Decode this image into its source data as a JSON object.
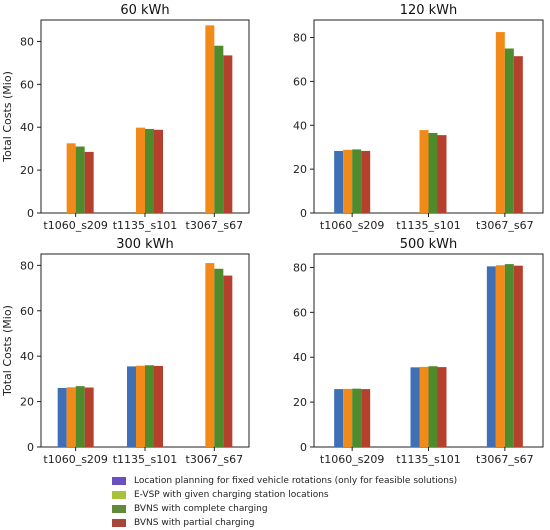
{
  "chart_data": [
    {
      "type": "bar",
      "title": "60 kWh",
      "ylabel": "Total Costs (Mio)",
      "categories": [
        "t1060_s209",
        "t1135_s101",
        "t3067_s67"
      ],
      "ylim": [
        0,
        90
      ],
      "yticks": [
        0,
        20,
        40,
        60,
        80
      ],
      "series": [
        {
          "name": "Location planning for fixed vehicle rotations (only for feasible solutions)",
          "values": [
            null,
            null,
            null
          ]
        },
        {
          "name": "E-VSP with given charging station locations",
          "values": [
            32.5,
            39.8,
            87.5
          ]
        },
        {
          "name": "BVNS with complete charging",
          "values": [
            31.0,
            39.2,
            78.0
          ]
        },
        {
          "name": "BVNS with partial charging",
          "values": [
            28.5,
            38.8,
            73.5
          ]
        }
      ]
    },
    {
      "type": "bar",
      "title": "120 kWh",
      "ylabel": "",
      "categories": [
        "t1060_s209",
        "t1135_s101",
        "t3067_s67"
      ],
      "ylim": [
        0,
        88
      ],
      "yticks": [
        0,
        20,
        40,
        60,
        80
      ],
      "series": [
        {
          "name": "Location planning for fixed vehicle rotations (only for feasible solutions)",
          "values": [
            28.3,
            null,
            null
          ]
        },
        {
          "name": "E-VSP with given charging station locations",
          "values": [
            28.8,
            37.8,
            82.5
          ]
        },
        {
          "name": "BVNS with complete charging",
          "values": [
            29.0,
            36.5,
            75.0
          ]
        },
        {
          "name": "BVNS with partial charging",
          "values": [
            28.3,
            35.5,
            71.5
          ]
        }
      ]
    },
    {
      "type": "bar",
      "title": "300 kWh",
      "ylabel": "Total Costs (Mio)",
      "categories": [
        "t1060_s209",
        "t1135_s101",
        "t3067_s67"
      ],
      "ylim": [
        0,
        85
      ],
      "yticks": [
        0,
        20,
        40,
        60,
        80
      ],
      "series": [
        {
          "name": "Location planning for fixed vehicle rotations (only for feasible solutions)",
          "values": [
            26.0,
            35.5,
            null
          ]
        },
        {
          "name": "E-VSP with given charging station locations",
          "values": [
            26.3,
            35.8,
            81.0
          ]
        },
        {
          "name": "BVNS with complete charging",
          "values": [
            26.8,
            36.0,
            78.5
          ]
        },
        {
          "name": "BVNS with partial charging",
          "values": [
            26.2,
            35.7,
            75.5
          ]
        }
      ]
    },
    {
      "type": "bar",
      "title": "500 kWh",
      "ylabel": "",
      "categories": [
        "t1060_s209",
        "t1135_s101",
        "t3067_s67"
      ],
      "ylim": [
        0,
        86
      ],
      "yticks": [
        0,
        20,
        40,
        60,
        80
      ],
      "series": [
        {
          "name": "Location planning for fixed vehicle rotations (only for feasible solutions)",
          "values": [
            25.8,
            35.5,
            80.5
          ]
        },
        {
          "name": "E-VSP with given charging station locations",
          "values": [
            25.9,
            35.7,
            81.0
          ]
        },
        {
          "name": "BVNS with complete charging",
          "values": [
            26.0,
            36.0,
            81.5
          ]
        },
        {
          "name": "BVNS with partial charging",
          "values": [
            25.8,
            35.6,
            80.8
          ]
        }
      ]
    }
  ],
  "series_colors": [
    "#3f6fb5",
    "#f28a1a",
    "#4f8a2c",
    "#b5402e"
  ],
  "legend": {
    "items": [
      {
        "label": "Location planning for fixed vehicle rotations (only for feasible solutions)",
        "color": "#6a4fc0"
      },
      {
        "label": "E-VSP with given charging station locations",
        "color": "#a6c23a"
      },
      {
        "label": "BVNS with complete charging",
        "color": "#5e8a3a"
      },
      {
        "label": "BVNS with partial charging",
        "color": "#a8453a"
      }
    ]
  }
}
